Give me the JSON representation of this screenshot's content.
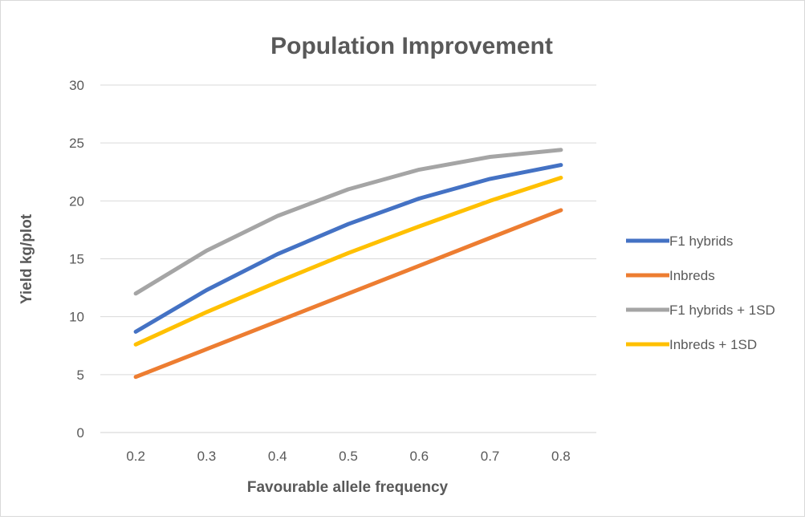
{
  "chart_data": {
    "type": "line",
    "title": "Population Improvement",
    "xlabel": "Favourable allele frequency",
    "ylabel": "Yield kg/plot",
    "x": [
      "0.2",
      "0.3",
      "0.4",
      "0.5",
      "0.6",
      "0.7",
      "0.8"
    ],
    "ylim": [
      0,
      30
    ],
    "yticks": [
      0,
      5,
      10,
      15,
      20,
      25,
      30
    ],
    "grid": true,
    "legend_position": "right",
    "series": [
      {
        "name": "F1 hybrids",
        "color": "#4472c4",
        "values": [
          8.7,
          12.3,
          15.4,
          18.0,
          20.2,
          21.9,
          23.1
        ]
      },
      {
        "name": "Inbreds",
        "color": "#ed7d31",
        "values": [
          4.8,
          7.2,
          9.6,
          12.0,
          14.4,
          16.8,
          19.2
        ]
      },
      {
        "name": "F1 hybrids + 1SD",
        "color": "#a5a5a5",
        "values": [
          12.0,
          15.7,
          18.7,
          21.0,
          22.7,
          23.8,
          24.4
        ]
      },
      {
        "name": "Inbreds + 1SD",
        "color": "#ffc000",
        "values": [
          7.6,
          10.4,
          13.0,
          15.5,
          17.8,
          20.0,
          22.0
        ]
      }
    ]
  }
}
